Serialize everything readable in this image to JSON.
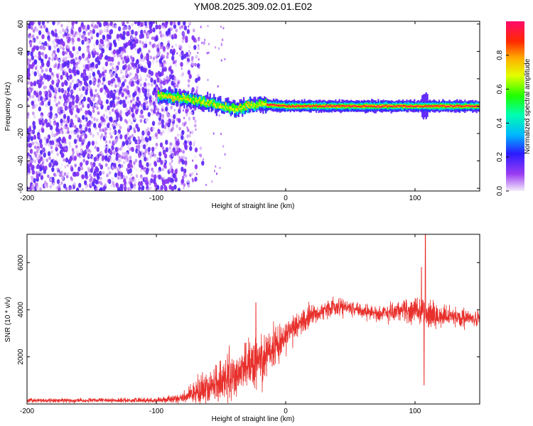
{
  "title": "YM08.2025.309.02.01.E02",
  "chart_data": [
    {
      "type": "heatmap",
      "name": "spectrogram",
      "xlabel": "Height of straight line (km)",
      "ylabel": "Frequency (Hz)",
      "xlim": [
        -200,
        150
      ],
      "ylim": [
        -62,
        62
      ],
      "xticks": [
        -200,
        -100,
        0,
        100
      ],
      "yticks": [
        -60,
        -40,
        -20,
        0,
        20,
        40,
        60
      ],
      "xtick_labels": [
        "-200",
        "-100",
        "0",
        "100"
      ],
      "ytick_labels": [
        "-60",
        "-40",
        "-20",
        "0",
        "20",
        "40",
        "60"
      ],
      "noise_region": {
        "x_start": -200,
        "x_end": -92,
        "fade_end": -70,
        "amplitude_range": [
          0.0,
          0.18
        ]
      },
      "signal_track": {
        "x": [
          -99,
          -90,
          -80,
          -70,
          -60,
          -50,
          -40,
          -30,
          -20,
          -15,
          0,
          50,
          100,
          150
        ],
        "freq": [
          8,
          7,
          6,
          4,
          2,
          0,
          -2,
          0,
          2,
          1,
          0,
          0,
          0,
          0
        ],
        "peak_amplitude": 1.0
      },
      "colorbar": {
        "label": "Normalized spectral amplitude",
        "range": [
          0.0,
          1.0
        ],
        "ticks": [
          0.0,
          0.2,
          0.4,
          0.6,
          0.8
        ],
        "tick_labels": [
          "0.0",
          "0.2",
          "0.4",
          "0.6",
          "0.8"
        ],
        "colormap": "gist_rainbow_r"
      }
    },
    {
      "type": "line",
      "name": "snr",
      "xlabel": "Height of straight line (km)",
      "ylabel": "SNR (10 * v/v)",
      "xlim": [
        -200,
        150
      ],
      "ylim": [
        0,
        7200
      ],
      "xticks": [
        -200,
        -100,
        0,
        100
      ],
      "yticks": [
        2000,
        4000,
        6000
      ],
      "xtick_labels": [
        "-200",
        "-100",
        "0",
        "100"
      ],
      "ytick_labels": [
        "2000",
        "4000",
        "6000"
      ],
      "color": "#e8302c",
      "series": [
        {
          "name": "SNR",
          "x": [
            -200,
            -150,
            -100,
            -80,
            -70,
            -60,
            -50,
            -40,
            -30,
            -20,
            -10,
            0,
            10,
            20,
            30,
            40,
            50,
            60,
            70,
            80,
            90,
            100,
            110,
            120,
            130,
            140,
            150
          ],
          "y": [
            150,
            150,
            160,
            250,
            500,
            700,
            900,
            1200,
            1500,
            1900,
            2400,
            2900,
            3400,
            3750,
            4000,
            4150,
            4100,
            3950,
            3850,
            3900,
            4000,
            4000,
            3800,
            3700,
            3750,
            3650,
            3600
          ],
          "noise": [
            80,
            80,
            90,
            180,
            400,
            650,
            800,
            900,
            1000,
            1000,
            800,
            600,
            450,
            400,
            350,
            350,
            300,
            300,
            300,
            350,
            400,
            500,
            600,
            450,
            350,
            300,
            300
          ]
        }
      ],
      "annotations": [
        {
          "x": -23,
          "y": 4300,
          "note": "spike"
        },
        {
          "x": 108,
          "y": 7200,
          "note": "spike"
        },
        {
          "x": 105,
          "y": 5800,
          "note": "spike"
        },
        {
          "x": 107,
          "y": 800,
          "note": "dip"
        }
      ]
    }
  ]
}
